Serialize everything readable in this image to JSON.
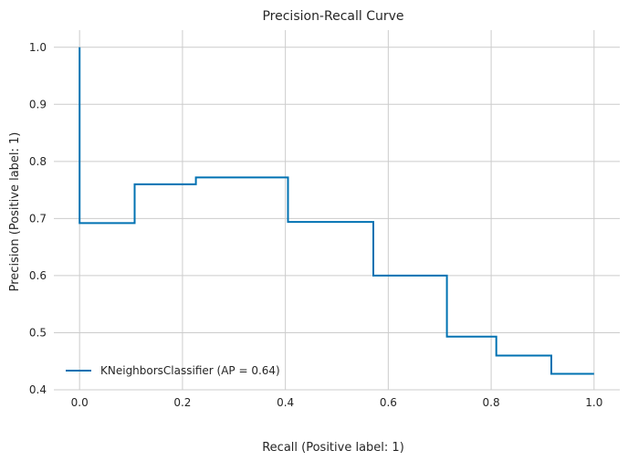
{
  "chart_data": {
    "type": "line",
    "step": "post",
    "title": "Precision-Recall Curve",
    "xlabel": "Recall (Positive label: 1)",
    "ylabel": "Precision (Positive label: 1)",
    "xlim": [
      -0.05,
      1.05
    ],
    "ylim": [
      0.4,
      1.03
    ],
    "xticks": [
      "0.0",
      "0.2",
      "0.4",
      "0.6",
      "0.8",
      "1.0"
    ],
    "yticks": [
      "0.4",
      "0.5",
      "0.6",
      "0.7",
      "0.8",
      "0.9",
      "1.0"
    ],
    "grid": true,
    "legend_position": "lower-left",
    "series": [
      {
        "name": "KNeighborsClassifier (AP = 0.64)",
        "color": "#0072b2",
        "points": [
          [
            1.0,
            0.428
          ],
          [
            0.917,
            0.428
          ],
          [
            0.917,
            0.46
          ],
          [
            0.81,
            0.46
          ],
          [
            0.81,
            0.493
          ],
          [
            0.714,
            0.493
          ],
          [
            0.714,
            0.6
          ],
          [
            0.571,
            0.6
          ],
          [
            0.571,
            0.694
          ],
          [
            0.405,
            0.694
          ],
          [
            0.405,
            0.772
          ],
          [
            0.226,
            0.772
          ],
          [
            0.226,
            0.76
          ],
          [
            0.107,
            0.76
          ],
          [
            0.107,
            0.692
          ],
          [
            0.0,
            0.692
          ],
          [
            0.0,
            1.0
          ]
        ]
      }
    ]
  }
}
